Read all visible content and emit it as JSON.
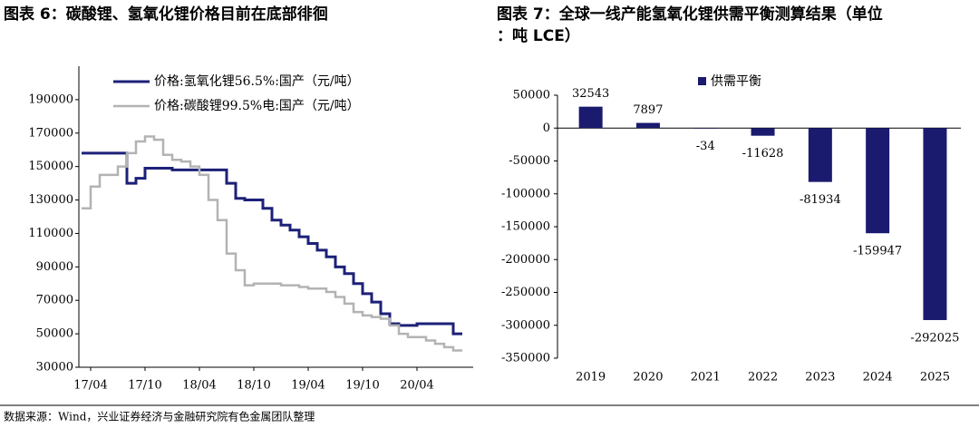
{
  "chart_data": [
    {
      "type": "line",
      "title": "图表 6：碳酸锂、氢氧化锂价格目前在底部徘徊",
      "x": [
        "17/03",
        "17/04",
        "17/05",
        "17/06",
        "17/07",
        "17/08",
        "17/09",
        "17/10",
        "17/11",
        "17/12",
        "18/01",
        "18/02",
        "18/03",
        "18/04",
        "18/05",
        "18/06",
        "18/07",
        "18/08",
        "18/09",
        "18/10",
        "18/11",
        "18/12",
        "19/01",
        "19/02",
        "19/03",
        "19/04",
        "19/05",
        "19/06",
        "19/07",
        "19/08",
        "19/09",
        "19/10",
        "19/11",
        "19/12",
        "20/01",
        "20/02",
        "20/03",
        "20/04",
        "20/05",
        "20/06",
        "20/07",
        "20/08",
        "20/09"
      ],
      "xticks": [
        "17/04",
        "17/10",
        "18/04",
        "18/10",
        "19/04",
        "19/10",
        "20/04"
      ],
      "series": [
        {
          "name": "价格:氢氧化锂56.5%:国产（元/吨）",
          "color": "#1c2178",
          "values": [
            158000,
            158000,
            158000,
            158000,
            158000,
            140000,
            143000,
            149000,
            149000,
            149000,
            148000,
            148000,
            148000,
            148000,
            148000,
            148000,
            140000,
            131000,
            130000,
            130000,
            125000,
            118000,
            115000,
            112000,
            108000,
            104000,
            100000,
            96000,
            90000,
            86000,
            80000,
            74000,
            69000,
            62000,
            56000,
            55000,
            55000,
            56000,
            56000,
            56000,
            56000,
            50000,
            50000
          ]
        },
        {
          "name": "价格:碳酸锂99.5%电:国产（元/吨）",
          "color": "#b3b3b3",
          "values": [
            125000,
            138000,
            145000,
            145000,
            150000,
            158000,
            165000,
            168000,
            166000,
            157000,
            154000,
            153000,
            150000,
            145000,
            130000,
            118000,
            98000,
            88000,
            79000,
            80000,
            80000,
            80000,
            79000,
            79000,
            78000,
            77000,
            77000,
            75000,
            72000,
            68000,
            63000,
            61000,
            60000,
            59000,
            55000,
            50000,
            48000,
            48000,
            46000,
            44000,
            42000,
            40000,
            40000
          ]
        }
      ],
      "ylim": [
        30000,
        210000
      ],
      "yticks": [
        30000,
        50000,
        70000,
        90000,
        110000,
        130000,
        150000,
        170000,
        190000
      ],
      "legend": "upper right"
    },
    {
      "type": "bar",
      "title": "图表 7：全球一线产能氢氧化锂供需平衡测算结果（单位：吨 LCE）",
      "categories": [
        "2019",
        "2020",
        "2021",
        "2022",
        "2023",
        "2024",
        "2025"
      ],
      "series": [
        {
          "name": "供需平衡",
          "color": "#1a1a6e",
          "values": [
            32543,
            7897,
            -34,
            -11628,
            -81934,
            -159947,
            -292025
          ]
        }
      ],
      "ylim": [
        -350000,
        50000
      ],
      "yticks": [
        50000,
        0,
        -50000,
        -100000,
        -150000,
        -200000,
        -250000,
        -300000,
        -350000
      ],
      "legend": "upper center"
    }
  ],
  "footer": "数据来源：Wind，兴业证券经济与金融研究院有色金属团队整理"
}
